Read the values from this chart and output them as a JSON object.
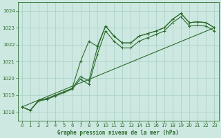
{
  "title": "Graphe pression niveau de la mer (hPa)",
  "bg_color": "#cce8e0",
  "line_color": "#2d6b2d",
  "grid_color": "#a8cfc8",
  "xlim": [
    -0.5,
    23.5
  ],
  "ylim": [
    1017.5,
    1024.5
  ],
  "yticks": [
    1018,
    1019,
    1020,
    1021,
    1022,
    1023,
    1024
  ],
  "xticks": [
    0,
    1,
    2,
    3,
    4,
    5,
    6,
    7,
    8,
    9,
    10,
    11,
    12,
    13,
    14,
    15,
    16,
    17,
    18,
    19,
    20,
    21,
    22,
    23
  ],
  "line1_x": [
    0,
    1,
    2,
    3,
    4,
    5,
    6,
    7,
    8,
    9,
    10,
    11,
    12,
    13,
    14,
    15,
    16,
    17,
    18,
    19,
    20,
    21,
    22,
    23
  ],
  "line1_y": [
    1018.3,
    1018.1,
    1018.7,
    1018.8,
    1019.0,
    1019.2,
    1019.4,
    1021.0,
    1022.2,
    1021.9,
    1023.1,
    1022.5,
    1022.1,
    1022.1,
    1022.5,
    1022.65,
    1022.8,
    1023.0,
    1023.5,
    1023.85,
    1023.3,
    1023.35,
    1023.3,
    1023.0
  ],
  "line2_x": [
    0,
    1,
    2,
    3,
    4,
    5,
    6,
    7,
    8,
    9,
    10,
    11,
    12,
    13,
    14,
    15,
    16,
    17,
    18,
    19,
    20,
    21,
    22,
    23
  ],
  "line2_y": [
    1018.3,
    1018.1,
    1018.7,
    1018.8,
    1019.0,
    1019.2,
    1019.4,
    1020.1,
    1019.85,
    1021.8,
    1023.1,
    1022.5,
    1022.1,
    1022.1,
    1022.5,
    1022.65,
    1022.8,
    1023.0,
    1023.5,
    1023.85,
    1023.3,
    1023.35,
    1023.3,
    1023.0
  ],
  "line3_x": [
    0,
    1,
    2,
    3,
    4,
    5,
    6,
    7,
    8,
    9,
    10,
    11,
    12,
    13,
    14,
    15,
    16,
    17,
    18,
    19,
    20,
    21,
    22,
    23
  ],
  "line3_y": [
    1018.3,
    1018.1,
    1018.65,
    1018.75,
    1018.95,
    1019.15,
    1019.35,
    1019.95,
    1019.65,
    1021.4,
    1022.8,
    1022.2,
    1021.8,
    1021.8,
    1022.2,
    1022.4,
    1022.6,
    1022.8,
    1023.3,
    1023.65,
    1023.1,
    1023.15,
    1023.1,
    1022.8
  ],
  "line4_x": [
    0,
    23
  ],
  "line4_y": [
    1018.3,
    1023.0
  ]
}
